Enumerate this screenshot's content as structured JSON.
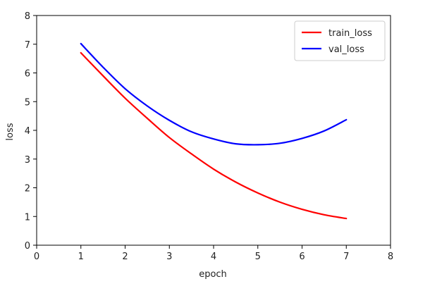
{
  "chart_data": {
    "type": "line",
    "xlabel": "epoch",
    "ylabel": "loss",
    "xlim": [
      0,
      8
    ],
    "ylim": [
      0,
      8
    ],
    "xticks": [
      "0",
      "1",
      "2",
      "3",
      "4",
      "5",
      "6",
      "7",
      "8"
    ],
    "yticks": [
      "0",
      "1",
      "2",
      "3",
      "4",
      "5",
      "6",
      "7",
      "8"
    ],
    "grid": false,
    "legend_position": "top-right",
    "series": [
      {
        "name": "train_loss",
        "color": "#ff0000",
        "x": [
          1,
          1.5,
          2,
          2.5,
          3,
          3.5,
          4,
          4.5,
          5,
          5.5,
          6,
          6.5,
          7
        ],
        "y": [
          6.7,
          5.9,
          5.12,
          4.42,
          3.75,
          3.18,
          2.65,
          2.2,
          1.82,
          1.5,
          1.25,
          1.06,
          0.93
        ]
      },
      {
        "name": "val_loss",
        "color": "#0000ff",
        "x": [
          1,
          1.5,
          2,
          2.5,
          3,
          3.5,
          4,
          4.5,
          5,
          5.5,
          6,
          6.5,
          7
        ],
        "y": [
          7.02,
          6.2,
          5.45,
          4.85,
          4.35,
          3.95,
          3.7,
          3.53,
          3.5,
          3.55,
          3.72,
          3.98,
          4.37
        ]
      }
    ]
  }
}
